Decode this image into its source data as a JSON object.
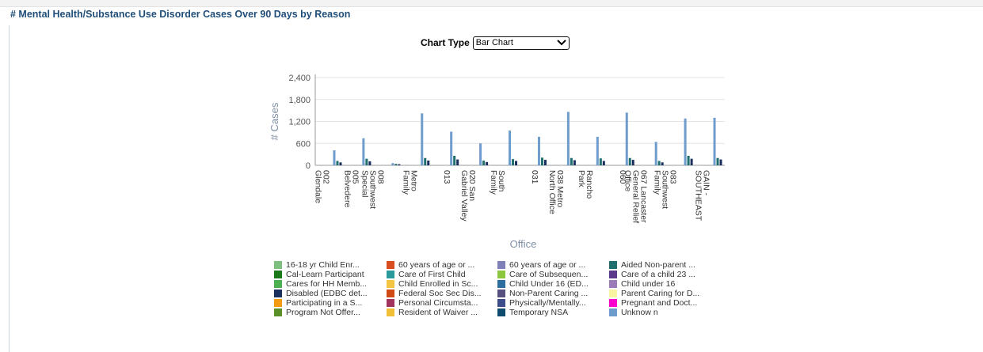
{
  "page": {
    "title": "# Mental Health/Substance Use Disorder Cases Over 90 Days by Reason",
    "chart_type_label": "Chart Type",
    "chart_type_value": "Bar Chart"
  },
  "chart_data": {
    "type": "bar",
    "title": "",
    "xlabel": "Office",
    "ylabel": "# Cases",
    "ylim": [
      0,
      2400
    ],
    "yticks": [
      "0",
      "600",
      "1,200",
      "1,800",
      "2,400"
    ],
    "grid": true,
    "legend_position": "bottom",
    "categories": [
      "002 Glendale",
      "005 Belvedere",
      "008 Southwest Special",
      "Metro Family",
      "013",
      "020 San Gabriel Valley",
      "South Family",
      "031",
      "038 Metro North Office",
      "Rancho Park",
      "060",
      "067 Lancaster General Relief Office",
      "083 Southwest Family",
      "GAIN - SOUTHEAST"
    ],
    "x_axis_ticks": [
      "002\nGlendale",
      "005\nBelvedere",
      "008\nSouthwest\nSpecial",
      "Metro\nFamily",
      "013",
      "020 San\nGabriel Valley",
      "South\nFamily",
      "031",
      "038 Metro\nNorth Office",
      "Rancho\nPark",
      "060",
      "067 Lancaster\nGeneral Relief\nOffice",
      "083\nSouthwest\nFamily",
      "GAIN -\nSOUTHEAST"
    ],
    "series": [
      {
        "name": "Unknow n",
        "values": [
          410,
          740,
          60,
          1420,
          920,
          600,
          950,
          780,
          1460,
          780,
          1440,
          640,
          1280,
          1300
        ]
      },
      {
        "name": "Aided Non-parent ...",
        "values": [
          120,
          180,
          40,
          200,
          260,
          130,
          170,
          210,
          200,
          190,
          200,
          120,
          260,
          200
        ]
      },
      {
        "name": "Disabled (EDBC det...",
        "values": [
          80,
          110,
          30,
          130,
          160,
          90,
          120,
          150,
          140,
          120,
          150,
          80,
          180,
          160
        ]
      }
    ],
    "legend": [
      {
        "label": "16-18 yr Child Enr...",
        "color": "#7fbf7f"
      },
      {
        "label": "60 years of age or ...",
        "color": "#d94e20"
      },
      {
        "label": "60 years of age or ...",
        "color": "#8080b8"
      },
      {
        "label": "Aided Non-parent ...",
        "color": "#1f6f6f"
      },
      {
        "label": "Cal-Learn Participant",
        "color": "#1a7a1a"
      },
      {
        "label": "Care of First Child",
        "color": "#2a9a9a"
      },
      {
        "label": "Care of Subsequen...",
        "color": "#8cc63f"
      },
      {
        "label": "Care of a child 23 ...",
        "color": "#5b3a8c"
      },
      {
        "label": "Cares for HH Memb...",
        "color": "#4caf50"
      },
      {
        "label": "Child Enrolled in Sc...",
        "color": "#f4c542"
      },
      {
        "label": "Child Under 16 (ED...",
        "color": "#2e6e9e"
      },
      {
        "label": "Child under 16",
        "color": "#9b7bb8"
      },
      {
        "label": "Disabled (EDBC det...",
        "color": "#1b2f5e"
      },
      {
        "label": "Federal Soc Sec Dis...",
        "color": "#d04a16"
      },
      {
        "label": "Non-Parent Caring ...",
        "color": "#55507e"
      },
      {
        "label": "Parent Caring for D...",
        "color": "#f7f3a0"
      },
      {
        "label": "Participating in a S...",
        "color": "#f39c12"
      },
      {
        "label": "Personal Circumsta...",
        "color": "#a0345e"
      },
      {
        "label": "Physically/Mentally...",
        "color": "#3e4d8a"
      },
      {
        "label": "Pregnant and Doct...",
        "color": "#ff00cc"
      },
      {
        "label": "Program Not Offer...",
        "color": "#5a8f2a"
      },
      {
        "label": "Resident of Waiver ...",
        "color": "#f2c037"
      },
      {
        "label": "Temporary NSA",
        "color": "#0f4b6e"
      },
      {
        "label": "Unknow n",
        "color": "#6e9ccc"
      }
    ]
  }
}
